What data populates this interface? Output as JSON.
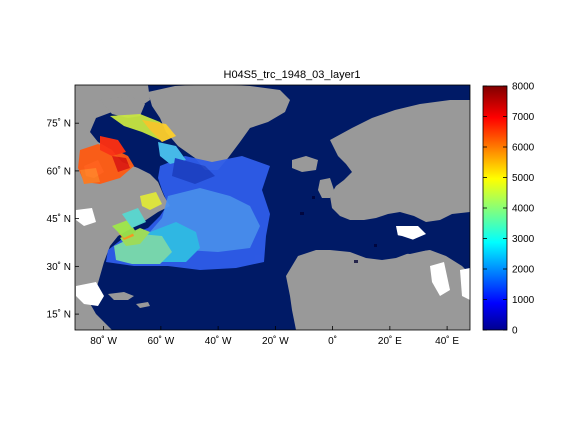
{
  "map": {
    "title": "H04S5_trc_1948_03_layer1",
    "colors": {
      "ocean": "#001a66",
      "land": "#999999",
      "nodata": "#ffffff"
    },
    "lon_ticks": [
      {
        "value": -80,
        "label": "80˚ W"
      },
      {
        "value": -60,
        "label": "60˚ W"
      },
      {
        "value": -40,
        "label": "40˚ W"
      },
      {
        "value": -20,
        "label": "20˚ W"
      },
      {
        "value": 0,
        "label": "0˚"
      },
      {
        "value": 20,
        "label": "20˚ E"
      },
      {
        "value": 40,
        "label": "40˚ E"
      }
    ],
    "lat_ticks": [
      {
        "value": 75,
        "label": "75˚ N"
      },
      {
        "value": 60,
        "label": "60˚ N"
      },
      {
        "value": 45,
        "label": "45˚ N"
      },
      {
        "value": 30,
        "label": "30˚ N"
      },
      {
        "value": 15,
        "label": "15˚ N"
      }
    ]
  },
  "colorbar": {
    "min": 0,
    "max": 8000,
    "ticks": [
      "0",
      "1000",
      "2000",
      "3000",
      "4000",
      "5000",
      "6000",
      "7000",
      "8000"
    ]
  }
}
